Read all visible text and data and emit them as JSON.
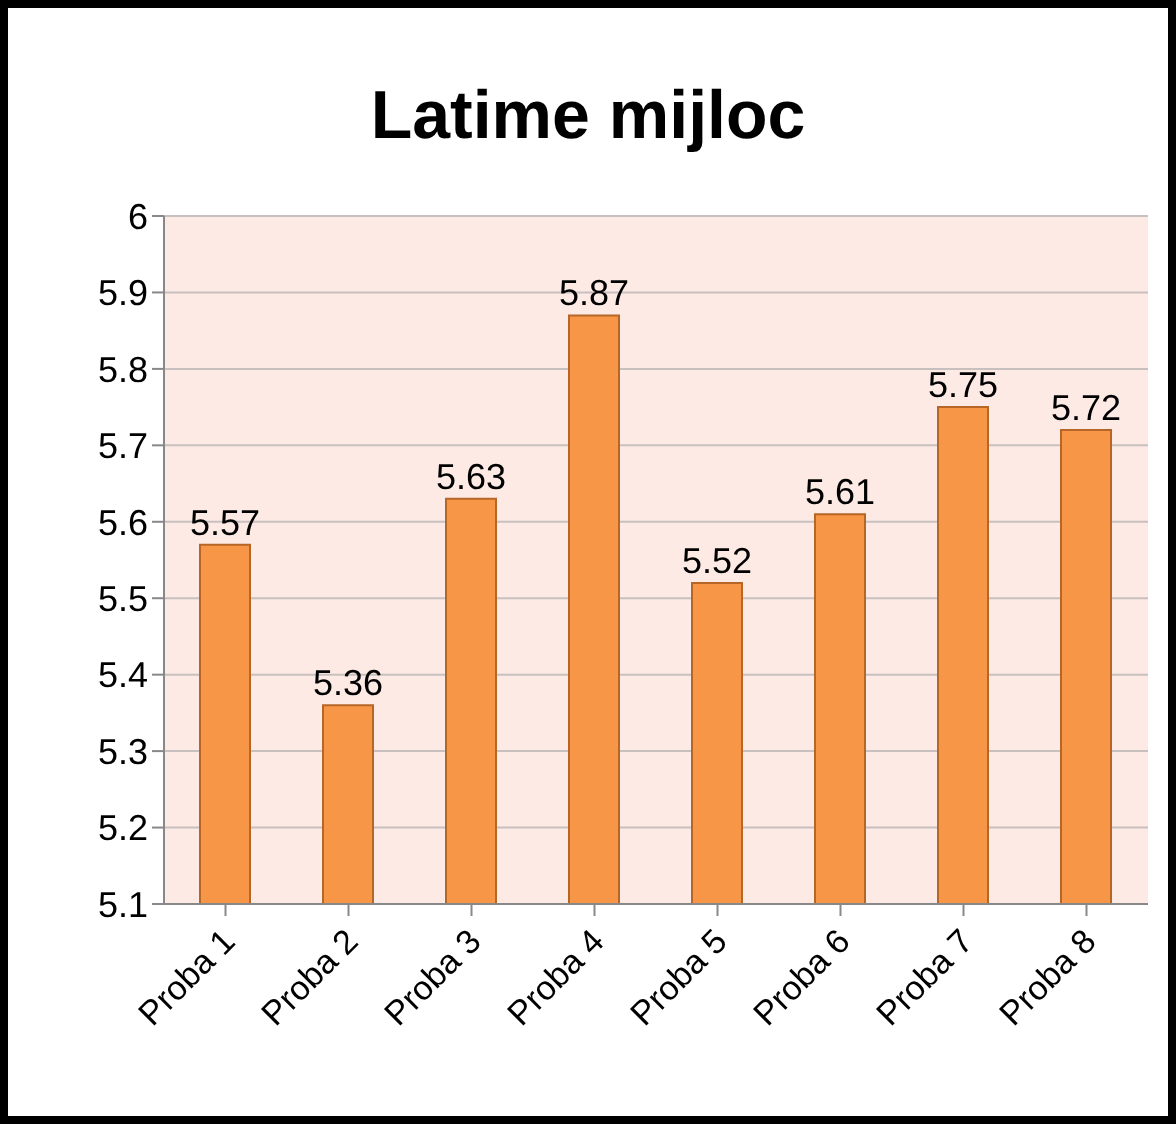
{
  "chart_data": {
    "type": "bar",
    "title": "Latime mijloc",
    "categories": [
      "Proba 1",
      "Proba 2",
      "Proba 3",
      "Proba 4",
      "Proba 5",
      "Proba 6",
      "Proba 7",
      "Proba 8"
    ],
    "values": [
      5.57,
      5.36,
      5.63,
      5.87,
      5.52,
      5.61,
      5.75,
      5.72
    ],
    "color": "#f79646",
    "ylim": [
      5.1,
      6
    ],
    "yticks": [
      5.1,
      5.2,
      5.3,
      5.4,
      5.5,
      5.6,
      5.7,
      5.8,
      5.9,
      6
    ],
    "grid": "y",
    "data_labels": true
  }
}
